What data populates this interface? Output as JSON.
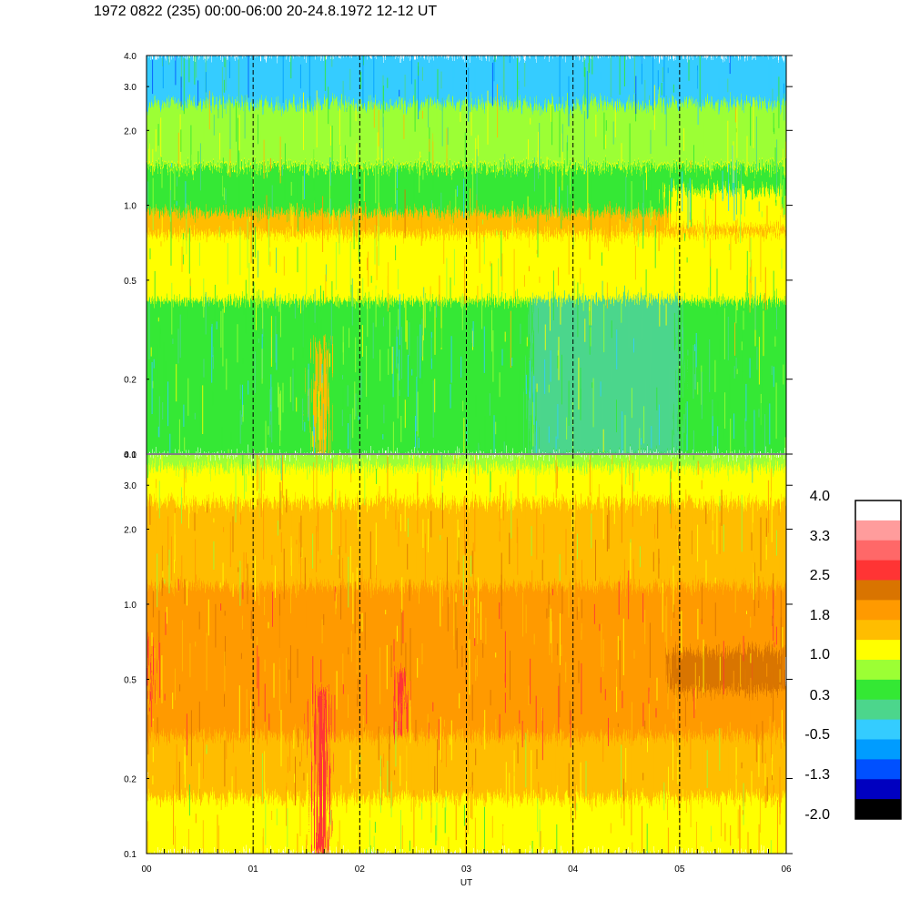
{
  "title": "1972 0822 (235) 00:00-06:00 20-24.8.1972  12-12 UT",
  "chart_data": [
    {
      "type": "heatmap",
      "panel": "upper",
      "x": {
        "label": "",
        "range": [
          0,
          6
        ],
        "unit": "hours UT",
        "tick_values": [
          0,
          1,
          2,
          3,
          4,
          5,
          6
        ],
        "tick_labels": [
          "00",
          "01",
          "02",
          "03",
          "04",
          "05",
          "06"
        ]
      },
      "y": {
        "label": "",
        "scale": "log",
        "range": [
          0.1,
          4.0
        ],
        "tick_values": [
          0.1,
          0.2,
          0.5,
          1.0,
          2.0,
          3.0,
          4.0
        ],
        "tick_labels": [
          "0.1",
          "0.2",
          "0.5",
          "1.0",
          "2.0",
          "3.0",
          "4.0"
        ]
      },
      "dashed_verticals": [
        1,
        2,
        3,
        4,
        5
      ],
      "value_range": [
        -2.0,
        4.0
      ],
      "bands": [
        {
          "y": [
            0.1,
            0.28
          ],
          "level": 0.3
        },
        {
          "y": [
            0.28,
            0.42
          ],
          "level": 0.6
        },
        {
          "y": [
            0.42,
            0.78
          ],
          "level": 1.0
        },
        {
          "y": [
            0.78,
            0.95
          ],
          "level": 1.4
        },
        {
          "y": [
            0.95,
            1.45
          ],
          "level": 0.3
        },
        {
          "y": [
            1.45,
            1.7
          ],
          "level": 1.0
        },
        {
          "y": [
            1.7,
            2.6
          ],
          "level": 0.7
        },
        {
          "y": [
            2.6,
            4.0
          ],
          "level": -0.2
        }
      ],
      "features": [
        {
          "x": [
            1.58,
            1.7
          ],
          "y": [
            0.1,
            0.28
          ],
          "level": 1.5
        },
        {
          "x": [
            3.6,
            5.0
          ],
          "y": [
            0.1,
            0.42
          ],
          "level": 0.1
        },
        {
          "x": [
            4.9,
            6.0
          ],
          "y": [
            0.82,
            1.15
          ],
          "level": 1.3
        },
        {
          "x": [
            0,
            6
          ],
          "y": [
            1.45,
            1.7
          ],
          "level": 0.85
        }
      ]
    },
    {
      "type": "heatmap",
      "panel": "lower",
      "x": {
        "label": "UT",
        "range": [
          0,
          6
        ],
        "unit": "hours UT",
        "tick_values": [
          0,
          1,
          2,
          3,
          4,
          5,
          6
        ],
        "tick_labels": [
          "00",
          "01",
          "02",
          "03",
          "04",
          "05",
          "06"
        ]
      },
      "y": {
        "label": "",
        "scale": "log",
        "range": [
          0.1,
          4.0
        ],
        "tick_values": [
          0.1,
          0.2,
          0.5,
          1.0,
          2.0,
          3.0,
          4.0
        ],
        "tick_labels": [
          "0.1",
          "0.2",
          "0.5",
          "1.0",
          "2.0",
          "3.0",
          "4.0"
        ]
      },
      "dashed_verticals": [
        1,
        2,
        3,
        4,
        5
      ],
      "value_range": [
        -2.0,
        4.0
      ],
      "bands": [
        {
          "y": [
            0.1,
            0.17
          ],
          "level": 1.3
        },
        {
          "y": [
            0.17,
            0.3
          ],
          "level": 1.6
        },
        {
          "y": [
            0.3,
            0.55
          ],
          "level": 2.1
        },
        {
          "y": [
            0.55,
            1.2
          ],
          "level": 1.9
        },
        {
          "y": [
            1.2,
            2.6
          ],
          "level": 1.6
        },
        {
          "y": [
            2.6,
            3.6
          ],
          "level": 1.3
        },
        {
          "y": [
            3.6,
            4.0
          ],
          "level": 0.9
        }
      ],
      "features": [
        {
          "x": [
            1.58,
            1.7
          ],
          "y": [
            0.1,
            0.45
          ],
          "level": 2.7
        },
        {
          "x": [
            2.35,
            2.42
          ],
          "y": [
            0.3,
            0.55
          ],
          "level": 2.6
        },
        {
          "x": [
            4.9,
            6.0
          ],
          "y": [
            0.45,
            0.65
          ],
          "level": 2.2
        },
        {
          "x": [
            0,
            0.05
          ],
          "y": [
            0.4,
            0.75
          ],
          "level": 2.6
        }
      ]
    }
  ],
  "colorbar": {
    "range": [
      -2.0,
      4.0
    ],
    "labels": [
      "4.0",
      "3.3",
      "2.5",
      "1.8",
      "1.0",
      "0.3",
      "-0.5",
      "-1.3",
      "-2.0"
    ],
    "colors": [
      "#ffffff",
      "#ff9c9c",
      "#ff6868",
      "#ff3434",
      "#d97400",
      "#ff9a00",
      "#ffbd00",
      "#ffff00",
      "#9cff34",
      "#34e834",
      "#4cd68c",
      "#34ccff",
      "#009cff",
      "#0050ff",
      "#0000c0",
      "#000000"
    ]
  }
}
